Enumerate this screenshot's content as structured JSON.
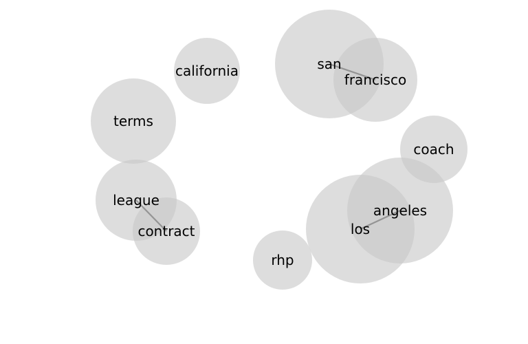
{
  "chart_data": {
    "type": "bubble-network",
    "colors": {
      "bubble": "#c8c8c8",
      "edge": "#808080",
      "label": "#000000"
    },
    "nodes": [
      {
        "id": "california",
        "label": "california"
      },
      {
        "id": "san",
        "label": "san"
      },
      {
        "id": "francisco",
        "label": "francisco"
      },
      {
        "id": "terms",
        "label": "terms"
      },
      {
        "id": "coach",
        "label": "coach"
      },
      {
        "id": "league",
        "label": "league"
      },
      {
        "id": "contract",
        "label": "contract"
      },
      {
        "id": "angeles",
        "label": "angeles"
      },
      {
        "id": "los",
        "label": "los"
      },
      {
        "id": "rhp",
        "label": "rhp"
      }
    ],
    "edges": [
      {
        "source": "san",
        "target": "francisco"
      },
      {
        "source": "league",
        "target": "contract"
      },
      {
        "source": "los",
        "target": "angeles"
      }
    ]
  }
}
